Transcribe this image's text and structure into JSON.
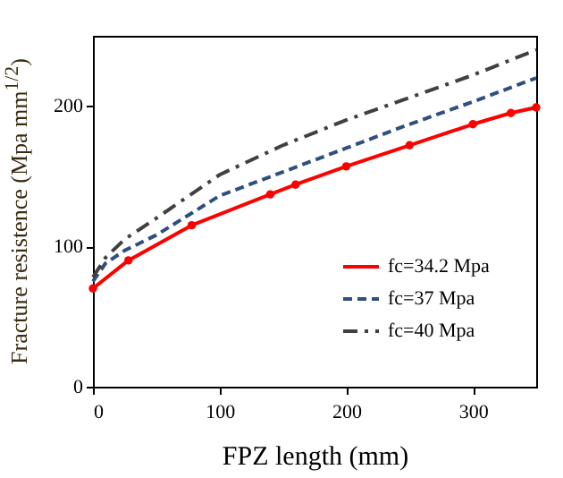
{
  "chart_data": {
    "type": "line",
    "xlabel": "FPZ length (mm)",
    "ylabel": "Fracture resistence (Mpa mm$^{1/2}$)",
    "xlim": [
      0,
      350
    ],
    "xticks": [
      0,
      100,
      200,
      300
    ],
    "ylim": [
      0,
      250
    ],
    "yticks": [
      0,
      100,
      200
    ],
    "grid": false,
    "legend": "bottom right",
    "series": [
      {
        "name": "fc=34.2 Mpa",
        "color": "#ff0000",
        "marker": "circle",
        "line_style": "solid",
        "x": [
          0,
          28,
          78,
          140,
          160,
          200,
          250,
          300,
          330,
          350
        ],
        "values": [
          70,
          90,
          115,
          137,
          144,
          157,
          172,
          187,
          195,
          199
        ]
      },
      {
        "name": "fc=37 Mpa",
        "color": "#2e4f7f",
        "marker": "none",
        "line_style": "dashed",
        "x": [
          0,
          10,
          25,
          50,
          100,
          150,
          200,
          250,
          300,
          350
        ],
        "values": [
          75,
          88,
          97,
          108,
          136,
          153,
          170,
          187,
          203,
          220
        ]
      },
      {
        "name": "fc=40 Mpa",
        "color": "#404040",
        "marker": "none",
        "line_style": "dashdot",
        "x": [
          0,
          10,
          25,
          50,
          100,
          150,
          200,
          250,
          300,
          350
        ],
        "values": [
          78,
          92,
          105,
          120,
          151,
          172,
          190,
          206,
          222,
          240
        ]
      }
    ]
  }
}
